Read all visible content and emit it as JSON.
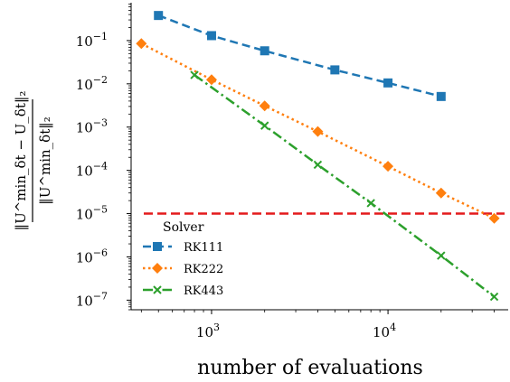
{
  "chart_data": {
    "type": "line",
    "xlabel": "number of evaluations",
    "ylabel": {
      "numerator": "‖U^min_δt − U_δt‖₂",
      "denominator": "‖U^min_δt‖₂"
    },
    "xscale": "log",
    "yscale": "log",
    "xlim": [
      350,
      48000
    ],
    "ylim": [
      6e-08,
      0.75
    ],
    "x_ticks": [
      {
        "value": 1000,
        "base": "10",
        "exp": "3"
      },
      {
        "value": 10000,
        "base": "10",
        "exp": "4"
      }
    ],
    "y_ticks": [
      {
        "value": 0.1,
        "base": "10",
        "exp": "−1"
      },
      {
        "value": 0.01,
        "base": "10",
        "exp": "−2"
      },
      {
        "value": 0.001,
        "base": "10",
        "exp": "−3"
      },
      {
        "value": 0.0001,
        "base": "10",
        "exp": "−4"
      },
      {
        "value": 1e-05,
        "base": "10",
        "exp": "−5"
      },
      {
        "value": 1e-06,
        "base": "10",
        "exp": "−6"
      },
      {
        "value": 1e-07,
        "base": "10",
        "exp": "−7"
      }
    ],
    "reference_line": {
      "y": 1e-05,
      "color": "#e41a1c",
      "style": "dashed"
    },
    "legend": {
      "title": "Solver",
      "placement": "lower-left"
    },
    "series": [
      {
        "name": "RK111",
        "color": "#1f77b4",
        "marker": "square",
        "linestyle": "dashed",
        "x": [
          500,
          1000,
          2000,
          5000,
          10000,
          20000
        ],
        "y": [
          0.38,
          0.13,
          0.058,
          0.021,
          0.0105,
          0.0051
        ]
      },
      {
        "name": "RK222",
        "color": "#ff7f0e",
        "marker": "diamond",
        "linestyle": "dotted",
        "x": [
          400,
          1000,
          2000,
          4000,
          10000,
          20000,
          40000
        ],
        "y": [
          0.085,
          0.0125,
          0.0031,
          0.00079,
          0.000124,
          3e-05,
          7.8e-06
        ]
      },
      {
        "name": "RK443",
        "color": "#2ca02c",
        "marker": "x",
        "linestyle": "dashdot",
        "x": [
          800,
          2000,
          4000,
          8000,
          20000,
          40000
        ],
        "y": [
          0.016,
          0.00108,
          0.000135,
          1.75e-05,
          1.07e-06,
          1.2e-07
        ]
      }
    ]
  }
}
